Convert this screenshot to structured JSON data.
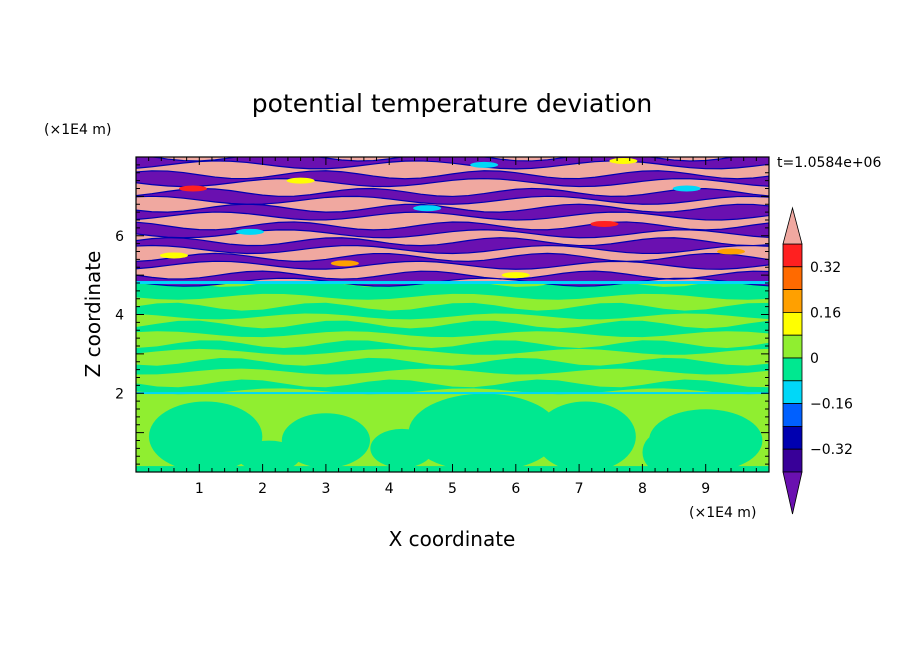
{
  "chart_data": {
    "type": "heatmap",
    "title": "potential temperature deviation",
    "xlabel": "X coordinate",
    "ylabel": "Z coordinate",
    "x_unit": "(×1E4 m)",
    "y_unit": "(×1E4 m)",
    "time_label": "t=1.0584e+06",
    "xlim": [
      0,
      10
    ],
    "ylim": [
      0,
      8
    ],
    "x_ticks": [
      1,
      2,
      3,
      4,
      5,
      6,
      7,
      8,
      9
    ],
    "y_ticks": [
      2,
      4,
      6
    ],
    "colorbar": {
      "levels": [
        -0.4,
        -0.32,
        -0.24,
        -0.16,
        -0.08,
        0,
        0.08,
        0.16,
        0.24,
        0.32,
        0.4
      ],
      "labels": [
        "0.32",
        "0.16",
        "0",
        "−0.16",
        "−0.32"
      ],
      "label_values": [
        0.32,
        0.16,
        0,
        -0.16,
        -0.32
      ],
      "colors_top_to_bottom": [
        "#f0a8a0",
        "#ff2020",
        "#ff6a00",
        "#ffa000",
        "#ffff00",
        "#90ee30",
        "#00e890",
        "#00d8f8",
        "#0060ff",
        "#0000b0",
        "#380098",
        "#6a10b0"
      ],
      "extend": "both"
    },
    "regions": [
      {
        "z_range": [
          0,
          2.0
        ],
        "description_levels": [
          0,
          0.08
        ],
        "pattern": "convective cells"
      },
      {
        "z_range": [
          2.0,
          4.8
        ],
        "description_levels": [
          0,
          0.08
        ],
        "pattern": "layered"
      },
      {
        "z_range": [
          4.8,
          8.0
        ],
        "description_levels": [
          -0.4,
          0.4
        ],
        "pattern": "alternating extreme bands"
      }
    ]
  },
  "colors": {
    "light_green": "#90ee30",
    "sea_green": "#00e890",
    "salmon": "#f0a8a0",
    "purple": "#6a10b0",
    "dark_blue": "#0000b0",
    "blue": "#0060ff",
    "cyan": "#00d8f8",
    "yellow": "#ffff00",
    "orange": "#ffa000",
    "red": "#ff2020"
  }
}
